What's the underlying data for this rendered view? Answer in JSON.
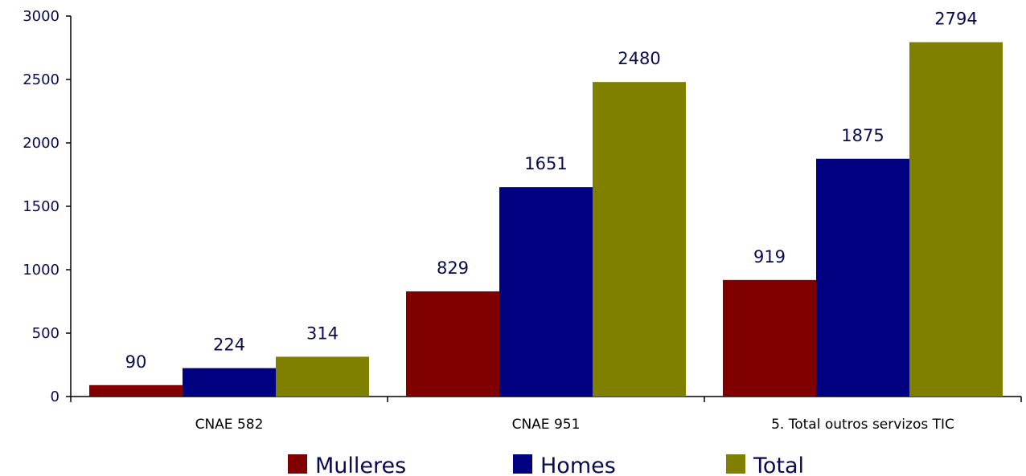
{
  "chart_data": {
    "type": "bar",
    "categories": [
      "CNAE 582",
      "CNAE 951",
      "5. Total outros servizos TIC"
    ],
    "series": [
      {
        "name": "Mulleres",
        "color": "#800000",
        "values": [
          90,
          829,
          919
        ]
      },
      {
        "name": "Homes",
        "color": "#000080",
        "values": [
          224,
          1651,
          1875
        ]
      },
      {
        "name": "Total",
        "color": "#808000",
        "values": [
          314,
          2480,
          2794
        ]
      }
    ],
    "data_labels": [
      [
        "90",
        "829",
        "919"
      ],
      [
        "224",
        "1651",
        "1875"
      ],
      [
        "314",
        "2480",
        "2794"
      ]
    ],
    "y_ticks": [
      "0",
      "500",
      "1000",
      "1500",
      "2000",
      "2500",
      "3000"
    ],
    "ylim": [
      0,
      3000
    ],
    "title": "",
    "xlabel": "",
    "ylabel": "",
    "grid": false,
    "legend_position": "bottom"
  }
}
